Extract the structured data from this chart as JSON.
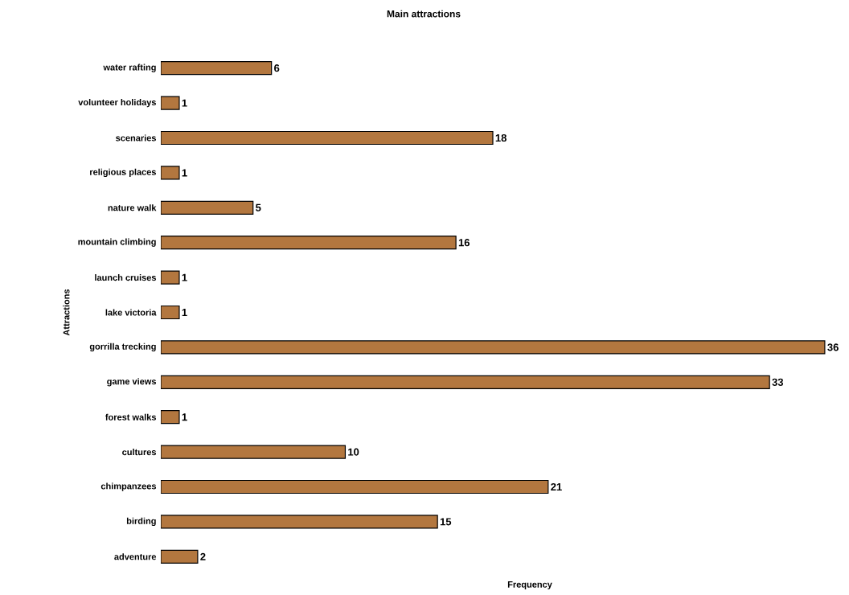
{
  "chart_data": {
    "type": "bar",
    "orientation": "horizontal",
    "title": "Main attractions",
    "xlabel": "Frequency",
    "ylabel": "Attractions",
    "categories": [
      "water rafting",
      "volunteer holidays",
      "scenaries",
      "religious places",
      "nature walk",
      "mountain climbing",
      "launch cruises",
      "lake victoria",
      "gorrilla trecking",
      "game views",
      "forest walks",
      "cultures",
      "chimpanzees",
      "birding",
      "adventure"
    ],
    "values": [
      6,
      1,
      18,
      1,
      5,
      16,
      1,
      1,
      36,
      33,
      1,
      10,
      21,
      15,
      2
    ],
    "color": "#b3773f",
    "data_labels": true
  }
}
